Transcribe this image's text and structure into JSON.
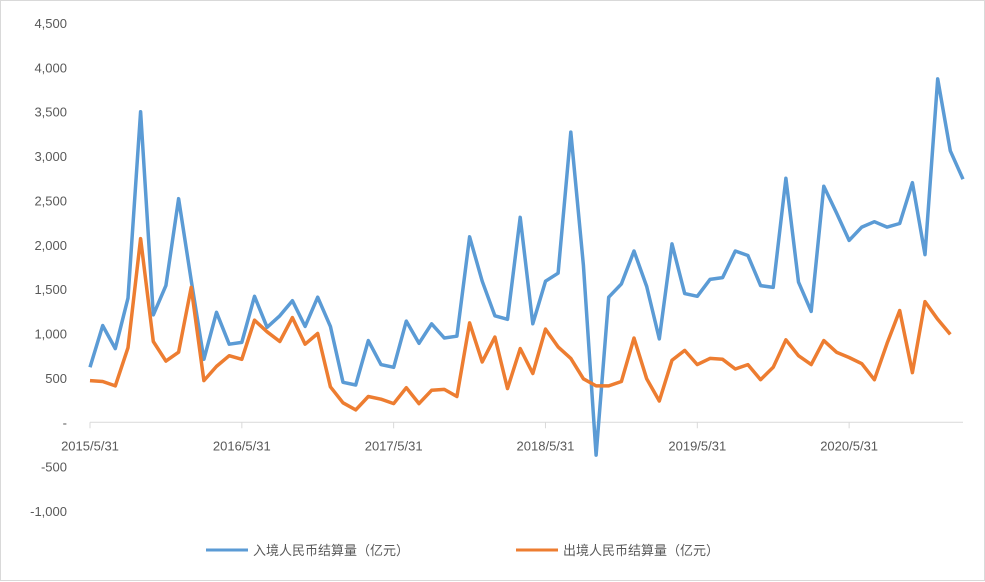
{
  "chart_data": {
    "type": "line",
    "title": "",
    "xlabel": "",
    "ylabel": "",
    "ylim": [
      -1000,
      4500
    ],
    "yticks": [
      {
        "value": 4500,
        "label": "4,500"
      },
      {
        "value": 4000,
        "label": "4,000"
      },
      {
        "value": 3500,
        "label": "3,500"
      },
      {
        "value": 3000,
        "label": "3,000"
      },
      {
        "value": 2500,
        "label": "2,500"
      },
      {
        "value": 2000,
        "label": "2,000"
      },
      {
        "value": 1500,
        "label": "1,500"
      },
      {
        "value": 1000,
        "label": "1,000"
      },
      {
        "value": 500,
        "label": "500"
      },
      {
        "value": 0,
        "label": "-"
      },
      {
        "value": -500,
        "label": "-500"
      },
      {
        "value": -1000,
        "label": "-1,000"
      }
    ],
    "xticks": [
      {
        "index": 0,
        "label": "2015/5/31"
      },
      {
        "index": 12,
        "label": "2016/5/31"
      },
      {
        "index": 24,
        "label": "2017/5/31"
      },
      {
        "index": 36,
        "label": "2018/5/31"
      },
      {
        "index": 48,
        "label": "2019/5/31"
      },
      {
        "index": 60,
        "label": "2020/5/31"
      }
    ],
    "grid": false,
    "legend": "bottom",
    "series": [
      {
        "name": "入境人民币结算量（亿元）",
        "color": "#5b9bd5",
        "values": [
          620,
          1090,
          830,
          1400,
          3500,
          1210,
          1540,
          2520,
          1600,
          710,
          1240,
          880,
          900,
          1420,
          1070,
          1200,
          1370,
          1080,
          1410,
          1080,
          450,
          420,
          920,
          650,
          620,
          1140,
          890,
          1110,
          950,
          970,
          2090,
          1590,
          1200,
          1160,
          2310,
          1110,
          1590,
          1680,
          3270,
          1770,
          -370,
          1410,
          1560,
          1930,
          1530,
          940,
          2010,
          1450,
          1420,
          1610,
          1630,
          1930,
          1880,
          1540,
          1520,
          2750,
          1580,
          1250,
          2660,
          2360,
          2050,
          2200,
          2260,
          2200,
          2240,
          2700,
          1890,
          3870,
          3060,
          2740
        ]
      },
      {
        "name": "出境人民币结算量（亿元）",
        "color": "#ed7d31",
        "values": [
          470,
          460,
          410,
          840,
          2070,
          910,
          690,
          790,
          1520,
          470,
          630,
          750,
          710,
          1150,
          1020,
          910,
          1180,
          880,
          1000,
          400,
          220,
          140,
          290,
          260,
          210,
          390,
          210,
          360,
          370,
          290,
          1120,
          680,
          960,
          380,
          830,
          550,
          1050,
          850,
          720,
          490,
          410,
          410,
          460,
          950,
          490,
          240,
          700,
          810,
          650,
          720,
          710,
          600,
          650,
          480,
          620,
          930,
          750,
          650,
          920,
          790,
          730,
          660,
          480,
          890,
          1260,
          560,
          1360,
          1160,
          990
        ]
      }
    ]
  }
}
